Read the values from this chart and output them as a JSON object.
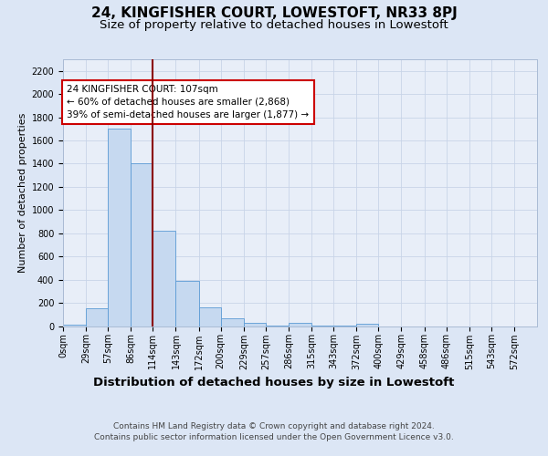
{
  "title": "24, KINGFISHER COURT, LOWESTOFT, NR33 8PJ",
  "subtitle": "Size of property relative to detached houses in Lowestoft",
  "xlabel": "Distribution of detached houses by size in Lowestoft",
  "ylabel": "Number of detached properties",
  "bar_labels": [
    "0sqm",
    "29sqm",
    "57sqm",
    "86sqm",
    "114sqm",
    "143sqm",
    "172sqm",
    "200sqm",
    "229sqm",
    "257sqm",
    "286sqm",
    "315sqm",
    "343sqm",
    "372sqm",
    "400sqm",
    "429sqm",
    "458sqm",
    "486sqm",
    "515sqm",
    "543sqm",
    "572sqm"
  ],
  "bar_values": [
    10,
    155,
    1700,
    1400,
    825,
    390,
    160,
    65,
    30,
    5,
    30,
    5,
    5,
    20,
    0,
    0,
    0,
    0,
    0,
    0,
    0
  ],
  "bin_edges": [
    0,
    29,
    57,
    86,
    114,
    143,
    172,
    200,
    229,
    257,
    286,
    315,
    343,
    372,
    400,
    429,
    458,
    486,
    515,
    543,
    572
  ],
  "bar_color": "#c6d9f0",
  "bar_edge_color": "#5b9bd5",
  "vline_x": 114,
  "vline_color": "#8b0000",
  "annotation_text": "24 KINGFISHER COURT: 107sqm\n← 60% of detached houses are smaller (2,868)\n39% of semi-detached houses are larger (1,877) →",
  "annotation_box_color": "#ffffff",
  "annotation_box_edge_color": "#cc0000",
  "ylim": [
    0,
    2300
  ],
  "yticks": [
    0,
    200,
    400,
    600,
    800,
    1000,
    1200,
    1400,
    1600,
    1800,
    2000,
    2200
  ],
  "grid_color": "#c8d4e8",
  "background_color": "#dce6f5",
  "plot_bg_color": "#e8eef8",
  "footer_line1": "Contains HM Land Registry data © Crown copyright and database right 2024.",
  "footer_line2": "Contains public sector information licensed under the Open Government Licence v3.0.",
  "title_fontsize": 11,
  "subtitle_fontsize": 9.5,
  "xlabel_fontsize": 9.5,
  "ylabel_fontsize": 8,
  "tick_fontsize": 7,
  "footer_fontsize": 6.5,
  "annot_fontsize": 7.5
}
